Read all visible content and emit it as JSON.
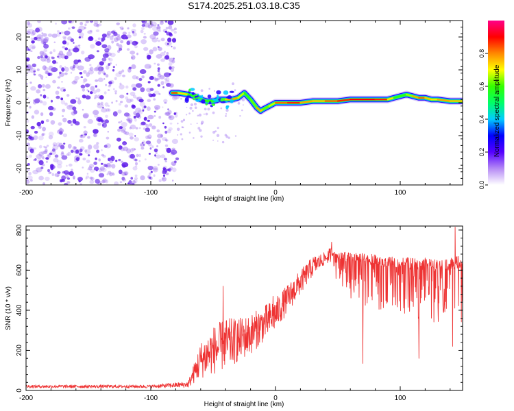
{
  "title": "S174.2025.251.03.18.C35",
  "colors": {
    "snr_line": "#ee3333",
    "noise_dots": "#9b6cf0",
    "noise_dots_dark": "#5a17e8",
    "axis": "#000000",
    "background": "#ffffff"
  },
  "colorbar": {
    "label": "Normalized spectral amplitude",
    "ticks": [
      "0.0",
      "0.2",
      "0.4",
      "0.6",
      "0.8"
    ],
    "tick_values": [
      0.0,
      0.2,
      0.4,
      0.6,
      0.8
    ],
    "range": [
      0,
      1
    ],
    "stops": [
      "#ffffff",
      "#b58af5",
      "#5500ff",
      "#0000ff",
      "#00ccff",
      "#00ff66",
      "#33ff00",
      "#ffff00",
      "#ff8800",
      "#ff0000",
      "#ff0088"
    ]
  },
  "chart_data": [
    {
      "type": "heatmap",
      "title": "S174.2025.251.03.18.C35",
      "xlabel": "Height of straight line (km)",
      "ylabel": "Frequency (Hz)",
      "xlim": [
        -200,
        150
      ],
      "ylim": [
        -25,
        25
      ],
      "xticks": [
        -200,
        -100,
        0,
        100
      ],
      "xtick_labels": [
        "-200",
        "-100",
        "0",
        "100"
      ],
      "yticks": [
        -20,
        -10,
        0,
        10,
        20
      ],
      "ytick_labels": [
        "-20",
        "-10",
        "0",
        "10",
        "20"
      ],
      "noise_region_x": [
        -200,
        -80
      ],
      "ridge": {
        "x": [
          -83,
          -78,
          -70,
          -65,
          -60,
          -55,
          -50,
          -45,
          -40,
          -35,
          -30,
          -25,
          -20,
          -15,
          -12,
          -10,
          -5,
          0,
          10,
          20,
          30,
          40,
          50,
          60,
          70,
          80,
          90,
          95,
          100,
          105,
          110,
          115,
          120,
          125,
          130,
          140,
          150
        ],
        "y": [
          3,
          3,
          2.5,
          2,
          1,
          0.5,
          0.5,
          1,
          1,
          1,
          1.5,
          3,
          1,
          -1.5,
          -2.5,
          -2,
          -1,
          0,
          0,
          0,
          0.5,
          0.5,
          0.5,
          1,
          1,
          1,
          1,
          1.5,
          2,
          2.5,
          2,
          1.5,
          1.5,
          1,
          1,
          0.5,
          0.5
        ],
        "amplitude": [
          0.85,
          0.85,
          0.6,
          0.55,
          0.6,
          0.6,
          0.55,
          0.55,
          0.7,
          0.8,
          0.75,
          0.6,
          0.55,
          0.7,
          0.85,
          0.65,
          0.6,
          0.75,
          0.9,
          0.85,
          0.7,
          0.8,
          0.85,
          0.9,
          0.9,
          0.9,
          0.85,
          0.6,
          0.55,
          0.6,
          0.7,
          0.85,
          0.8,
          0.7,
          0.75,
          0.8,
          0.7
        ]
      }
    },
    {
      "type": "line",
      "xlabel": "Height of straight line (km)",
      "ylabel": "SNR (10 * v/v)",
      "xlim": [
        -200,
        150
      ],
      "ylim": [
        0,
        820
      ],
      "xticks": [
        -200,
        -100,
        0,
        100
      ],
      "xtick_labels": [
        "-200",
        "-100",
        "0",
        "100"
      ],
      "yticks": [
        0,
        200,
        400,
        600,
        800
      ],
      "ytick_labels": [
        "0",
        "200",
        "400",
        "600",
        "800"
      ],
      "series": [
        {
          "name": "SNR",
          "envelope": {
            "x": [
              -200,
              -150,
              -100,
              -70,
              -60,
              -50,
              -40,
              -30,
              -20,
              -10,
              0,
              10,
              20,
              30,
              40,
              45,
              50,
              60,
              70,
              80,
              90,
              100,
              110,
              120,
              130,
              140,
              150
            ],
            "center": [
              20,
              20,
              20,
              30,
              150,
              200,
              230,
              250,
              280,
              330,
              380,
              460,
              540,
              620,
              660,
              680,
              670,
              660,
              650,
              640,
              630,
              630,
              620,
              620,
              610,
              620,
              630
            ],
            "spread": [
              8,
              8,
              8,
              15,
              90,
              120,
              130,
              110,
              100,
              90,
              80,
              70,
              60,
              50,
              30,
              40,
              80,
              120,
              140,
              150,
              150,
              150,
              170,
              170,
              170,
              180,
              170
            ]
          },
          "notable_points": [
            {
              "x": -42,
              "y": 520
            },
            {
              "x": -2,
              "y": 470
            },
            {
              "x": 45,
              "y": 740
            },
            {
              "x": 70,
              "y": 135
            },
            {
              "x": 115,
              "y": 160
            },
            {
              "x": 142,
              "y": 220
            },
            {
              "x": 144,
              "y": 815
            }
          ]
        }
      ]
    }
  ]
}
